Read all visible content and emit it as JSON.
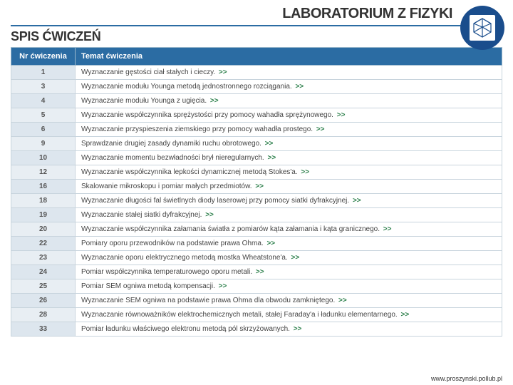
{
  "header": {
    "title": "LABORATORIUM Z FIZYKI",
    "subtitle": "SPIS ĆWICZEŃ"
  },
  "table": {
    "col_number": "Nr ćwiczenia",
    "col_topic": "Temat ćwiczenia",
    "arrow": ">>"
  },
  "rows": [
    {
      "n": "1",
      "t": "Wyznaczanie gęstości ciał stałych i cieczy."
    },
    {
      "n": "3",
      "t": "Wyznaczanie modułu Younga metodą jednostronnego rozciągania."
    },
    {
      "n": "4",
      "t": "Wyznaczanie modułu Younga z ugięcia."
    },
    {
      "n": "5",
      "t": "Wyznaczanie współczynnika sprężystości przy pomocy wahadła sprężynowego."
    },
    {
      "n": "6",
      "t": "Wyznaczanie przyspieszenia ziemskiego przy pomocy wahadła prostego."
    },
    {
      "n": "9",
      "t": "Sprawdzanie drugiej zasady dynamiki ruchu obrotowego."
    },
    {
      "n": "10",
      "t": "Wyznaczanie momentu bezwładności brył nieregularnych."
    },
    {
      "n": "12",
      "t": "Wyznaczanie współczynnika lepkości dynamicznej metodą Stokes'a."
    },
    {
      "n": "16",
      "t": "Skalowanie mikroskopu i pomiar małych przedmiotów."
    },
    {
      "n": "18",
      "t": "Wyznaczanie długości fal świetlnych diody laserowej przy pomocy siatki dyfrakcyjnej."
    },
    {
      "n": "19",
      "t": "Wyznaczanie stałej siatki dyfrakcyjnej."
    },
    {
      "n": "20",
      "t": "Wyznaczanie współczynnika załamania światła z pomiarów kąta załamania i kąta granicznego."
    },
    {
      "n": "22",
      "t": "Pomiary oporu przewodników na podstawie prawa Ohma."
    },
    {
      "n": "23",
      "t": "Wyznaczanie oporu elektrycznego metodą mostka Wheatstone'a."
    },
    {
      "n": "24",
      "t": "Pomiar współczynnika temperaturowego oporu metali."
    },
    {
      "n": "25",
      "t": "Pomiar SEM ogniwa metodą kompensacji."
    },
    {
      "n": "26",
      "t": "Wyznaczanie SEM ogniwa na podstawie prawa Ohma dla obwodu zamkniętego."
    },
    {
      "n": "28",
      "t": "Wyznaczanie równoważników elektrochemicznych metali, stałej Faraday'a i ładunku elementarnego."
    },
    {
      "n": "33",
      "t": "Pomiar ładunku właściwego elektronu metodą pól skrzyżowanych."
    }
  ],
  "footer": {
    "url": "www.proszynski.pollub.pl"
  },
  "colors": {
    "accent": "#2b6ca3",
    "arrow": "#2b7f4a",
    "header_bg": "#2b6ca3",
    "numcell_bg": "#e4ecf2",
    "logo_bg": "#1a4d8c"
  }
}
